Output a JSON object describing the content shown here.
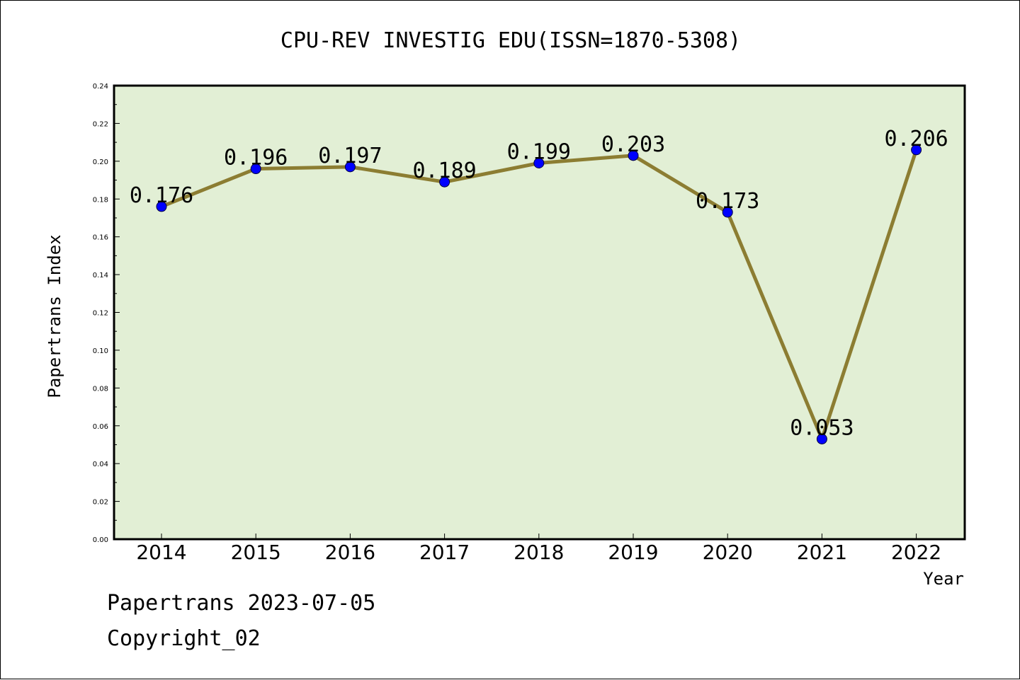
{
  "chart_data": {
    "type": "line",
    "title": "CPU-REV INVESTIG EDU(ISSN=1870-5308)",
    "xlabel": "Year",
    "ylabel": "Papertrans Index",
    "categories": [
      "2014",
      "2015",
      "2016",
      "2017",
      "2018",
      "2019",
      "2020",
      "2021",
      "2022"
    ],
    "series": [
      {
        "values": [
          0.176,
          0.196,
          0.197,
          0.189,
          0.199,
          0.203,
          0.173,
          0.053,
          0.206
        ],
        "data_labels": [
          "0.176",
          "0.196",
          "0.197",
          "0.189",
          "0.199",
          "0.203",
          "0.173",
          "0.053",
          "0.206"
        ]
      }
    ],
    "ylim": [
      0,
      0.24
    ],
    "yticks": [
      "0.00",
      "0.02",
      "0.04",
      "0.06",
      "0.08",
      "0.10",
      "0.12",
      "0.14",
      "0.16",
      "0.18",
      "0.20",
      "0.22",
      "0.24"
    ],
    "grid": false,
    "legend": "none",
    "colors": {
      "plot_background": "#e2efd5",
      "line": "#8c7d32",
      "marker": "#0000ff"
    }
  },
  "footer": {
    "credit": "Papertrans 2023-07-05",
    "copyright": "Copyright_02"
  }
}
